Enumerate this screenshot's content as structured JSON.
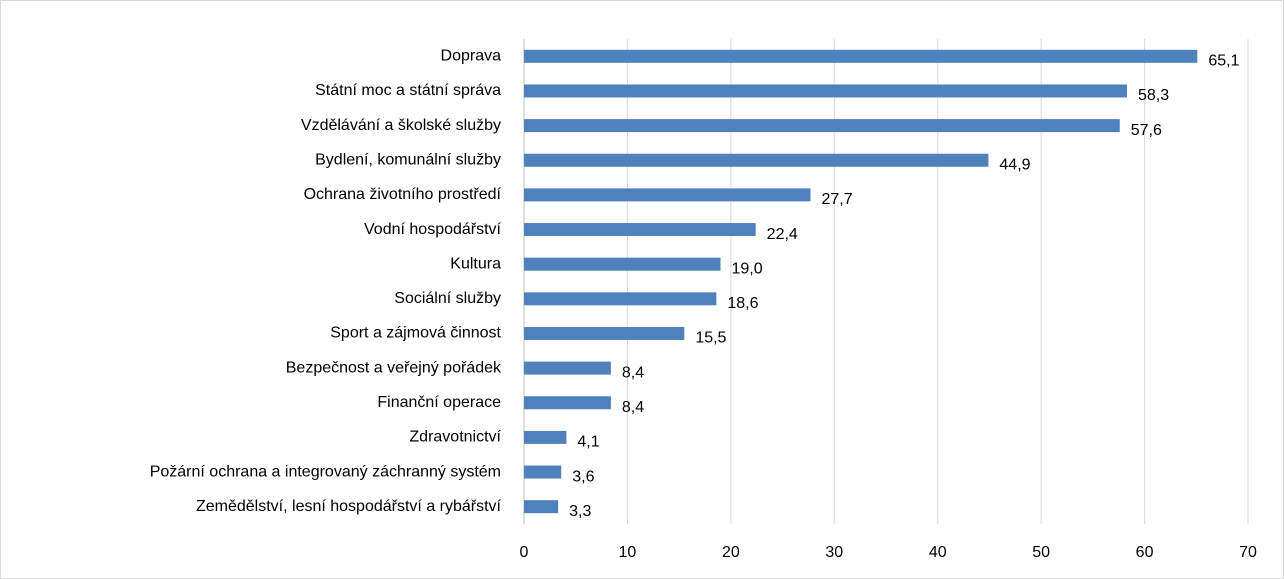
{
  "chart_data": {
    "type": "bar",
    "orientation": "horizontal",
    "categories": [
      "Doprava",
      "Státní moc a státní správa",
      "Vzdělávání a školské služby",
      "Bydlení, komunální služby",
      "Ochrana životního prostředí",
      "Vodní hospodářství",
      "Kultura",
      "Sociální služby",
      "Sport a zájmová činnost",
      "Bezpečnost a veřejný pořádek",
      "Finanční operace",
      "Zdravotnictví",
      "Požární ochrana a integrovaný záchranný systém",
      "Zemědělství, lesní hospodářství a rybářství"
    ],
    "values": [
      65.1,
      58.3,
      57.6,
      44.9,
      27.7,
      22.4,
      19.0,
      18.6,
      15.5,
      8.4,
      8.4,
      4.1,
      3.6,
      3.3
    ],
    "value_labels": [
      "65,1",
      "58,3",
      "57,6",
      "44,9",
      "27,7",
      "22,4",
      "19,0",
      "18,6",
      "15,5",
      "8,4",
      "8,4",
      "4,1",
      "3,6",
      "3,3"
    ],
    "color": "#4f81bd",
    "xlim": [
      0,
      70
    ],
    "xticks": [
      0,
      10,
      20,
      30,
      40,
      50,
      60,
      70
    ],
    "grid": true
  }
}
